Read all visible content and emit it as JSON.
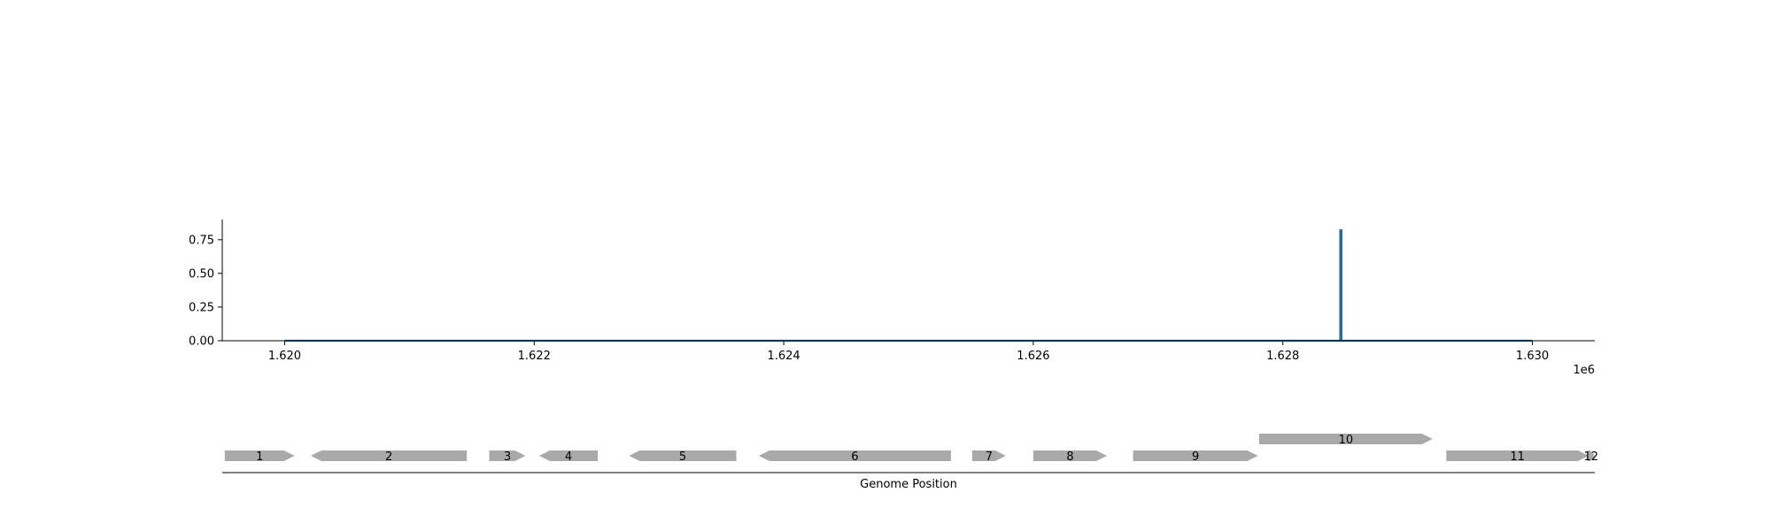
{
  "colors": {
    "line": "#1f6f9f",
    "gene_fill": "#a9a9a9",
    "axis": "#000000"
  },
  "chart_data": [
    {
      "type": "line",
      "title": "",
      "xlabel": "",
      "ylabel": "",
      "x_offset_label": "1e6",
      "xlim": [
        1.6195,
        1.6305
      ],
      "ylim": [
        0,
        0.9
      ],
      "x_ticks": [
        "1.620",
        "1.622",
        "1.624",
        "1.626",
        "1.628",
        "1.630"
      ],
      "y_ticks": [
        "0.00",
        "0.25",
        "0.50",
        "0.75"
      ],
      "grid": false,
      "series": [
        {
          "x": [
            1.62,
            1.62846,
            1.62846,
            1.62847,
            1.62847,
            1.63
          ],
          "y": [
            0,
            0,
            0.82,
            0.82,
            0,
            0
          ]
        }
      ]
    },
    {
      "type": "gene_map",
      "xlabel": "Genome Position",
      "xlim": [
        1.6195,
        1.6305
      ],
      "genes": [
        {
          "label": "1",
          "start": 1.61952,
          "end": 1.62008,
          "strand": "+",
          "row": 0
        },
        {
          "label": "2",
          "start": 1.62021,
          "end": 1.62146,
          "strand": "-",
          "row": 0
        },
        {
          "label": "3",
          "start": 1.62164,
          "end": 1.62193,
          "strand": "+",
          "row": 0
        },
        {
          "label": "4",
          "start": 1.62204,
          "end": 1.62251,
          "strand": "-",
          "row": 0
        },
        {
          "label": "5",
          "start": 1.62276,
          "end": 1.62362,
          "strand": "-",
          "row": 0
        },
        {
          "label": "6",
          "start": 1.6238,
          "end": 1.62534,
          "strand": "-",
          "row": 0
        },
        {
          "label": "7",
          "start": 1.62551,
          "end": 1.62578,
          "strand": "+",
          "row": 0
        },
        {
          "label": "8",
          "start": 1.626,
          "end": 1.62659,
          "strand": "+",
          "row": 0
        },
        {
          "label": "9",
          "start": 1.6268,
          "end": 1.6278,
          "strand": "+",
          "row": 0
        },
        {
          "label": "10",
          "start": 1.62781,
          "end": 1.6292,
          "strand": "+",
          "row": 1
        },
        {
          "label": "11",
          "start": 1.62931,
          "end": 1.63045,
          "strand": "+",
          "row": 0
        },
        {
          "label": "12",
          "start": 1.63044,
          "end": 1.6305,
          "strand": "+",
          "row": 0
        }
      ]
    }
  ]
}
